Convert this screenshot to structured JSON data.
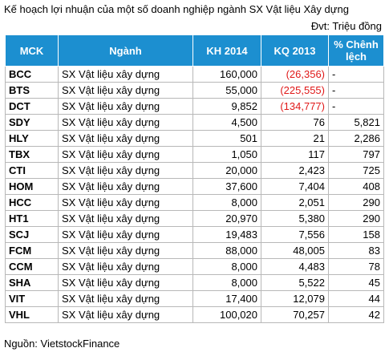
{
  "title": "Kế hoạch lợi nhuận của một số doanh nghiệp ngành SX Vật liệu Xây dựng",
  "unit": "Đvt: Triệu đồng",
  "source": "Nguồn: VietstockFinance",
  "colors": {
    "header_bg": "#1c8fd0",
    "header_text": "#ffffff",
    "negative": "#e01818",
    "grid": "#b8b8b8"
  },
  "table": {
    "headers": {
      "mck": "MCK",
      "nganh": "Ngành",
      "kh2014": "KH 2014",
      "kq2013": "KQ 2013",
      "pct_line1": "% Chênh",
      "pct_line2": "lệch"
    },
    "rows": [
      {
        "mck": "BCC",
        "nganh": "SX Vật liệu xây dựng",
        "kh2014": "160,000",
        "kq2013": "(26,356)",
        "kq_negative": true,
        "pct": "-"
      },
      {
        "mck": "BTS",
        "nganh": "SX Vật liệu xây dựng",
        "kh2014": "55,000",
        "kq2013": "(225,555)",
        "kq_negative": true,
        "pct": "-"
      },
      {
        "mck": "DCT",
        "nganh": "SX Vật liệu xây dựng",
        "kh2014": "9,852",
        "kq2013": "(134,777)",
        "kq_negative": true,
        "pct": "-"
      },
      {
        "mck": "SDY",
        "nganh": "SX Vật liệu xây dựng",
        "kh2014": "4,500",
        "kq2013": "76",
        "kq_negative": false,
        "pct": "5,821"
      },
      {
        "mck": "HLY",
        "nganh": "SX Vật liệu xây dựng",
        "kh2014": "501",
        "kq2013": "21",
        "kq_negative": false,
        "pct": "2,286"
      },
      {
        "mck": "TBX",
        "nganh": "SX Vật liệu xây dựng",
        "kh2014": "1,050",
        "kq2013": "117",
        "kq_negative": false,
        "pct": "797"
      },
      {
        "mck": "CTI",
        "nganh": "SX Vật liệu xây dựng",
        "kh2014": "20,000",
        "kq2013": "2,423",
        "kq_negative": false,
        "pct": "725"
      },
      {
        "mck": "HOM",
        "nganh": "SX Vật liệu xây dựng",
        "kh2014": "37,600",
        "kq2013": "7,404",
        "kq_negative": false,
        "pct": "408"
      },
      {
        "mck": "HCC",
        "nganh": "SX Vật liệu xây dựng",
        "kh2014": "8,000",
        "kq2013": "2,051",
        "kq_negative": false,
        "pct": "290"
      },
      {
        "mck": "HT1",
        "nganh": "SX Vật liệu xây dựng",
        "kh2014": "20,970",
        "kq2013": "5,380",
        "kq_negative": false,
        "pct": "290"
      },
      {
        "mck": "SCJ",
        "nganh": "SX Vật liệu xây dựng",
        "kh2014": "19,483",
        "kq2013": "7,556",
        "kq_negative": false,
        "pct": "158"
      },
      {
        "mck": "FCM",
        "nganh": "SX Vật liệu xây dựng",
        "kh2014": "88,000",
        "kq2013": "48,005",
        "kq_negative": false,
        "pct": "83"
      },
      {
        "mck": "CCM",
        "nganh": "SX Vật liệu xây dựng",
        "kh2014": "8,000",
        "kq2013": "4,483",
        "kq_negative": false,
        "pct": "78"
      },
      {
        "mck": "SHA",
        "nganh": "SX Vật liệu xây dựng",
        "kh2014": "8,000",
        "kq2013": "5,522",
        "kq_negative": false,
        "pct": "45"
      },
      {
        "mck": "VIT",
        "nganh": "SX Vật liệu xây dựng",
        "kh2014": "17,400",
        "kq2013": "12,079",
        "kq_negative": false,
        "pct": "44"
      },
      {
        "mck": "VHL",
        "nganh": "SX Vật liệu xây dựng",
        "kh2014": "100,020",
        "kq2013": "70,257",
        "kq_negative": false,
        "pct": "42"
      }
    ]
  }
}
